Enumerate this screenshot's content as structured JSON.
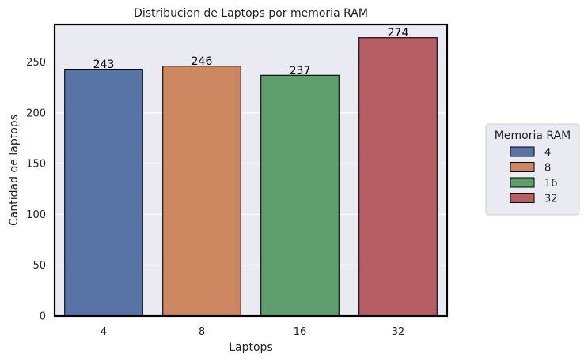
{
  "chart_data": {
    "type": "bar",
    "title": "Distribucion de Laptops por memoria RAM",
    "xlabel": "Laptops",
    "ylabel": "Cantidad de laptops",
    "categories": [
      "4",
      "8",
      "16",
      "32"
    ],
    "values": [
      243,
      246,
      237,
      274
    ],
    "data_labels": [
      "243",
      "246",
      "237",
      "274"
    ],
    "colors": [
      "#5874a6",
      "#cd8862",
      "#5f9f6e",
      "#b65e63"
    ],
    "ylim": [
      0,
      287
    ],
    "yticks": [
      0,
      50,
      100,
      150,
      200,
      250
    ],
    "grid": true,
    "legend": {
      "title": "Memoria RAM",
      "placement": "center-right",
      "entries": [
        "4",
        "8",
        "16",
        "32"
      ]
    }
  }
}
